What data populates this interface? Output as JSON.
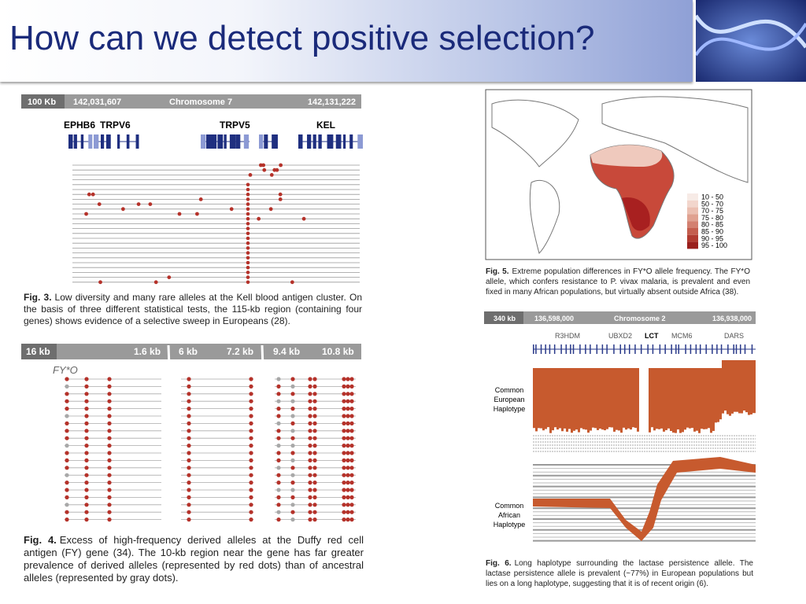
{
  "title": "How can we detect positive selection?",
  "fig3": {
    "scale": "100 Kb",
    "start": "142,031,607",
    "chromosome": "Chromosome 7",
    "end": "142,131,222",
    "genes": [
      "EPHB6",
      "TRPV6",
      "TRPV5",
      "KEL"
    ],
    "caption_label": "Fig. 3.",
    "caption": "Low diversity and many rare alleles at the Kell blood antigen cluster. On the basis of three different statistical tests, the 115-kb region (containing four genes) shows evidence of a selective sweep in Europeans (28)."
  },
  "fig4": {
    "scale": "16 kb",
    "ticks": [
      "1.6 kb",
      "6 kb",
      "7.2 kb",
      "9.4 kb",
      "10.8 kb"
    ],
    "allele": "FY*O",
    "caption_label": "Fig. 4.",
    "caption": "Excess of high-frequency derived alleles at the Duffy red cell antigen (FY) gene (34). The 10-kb region near the gene has far greater prevalence of derived alleles (represented by red dots) than of ancestral alleles (represented by gray dots)."
  },
  "fig5": {
    "legend": [
      "10 - 50",
      "50 - 70",
      "70 - 75",
      "75 - 80",
      "80 - 85",
      "85 - 90",
      "90 - 95",
      "95 - 100"
    ],
    "caption_label": "Fig. 5.",
    "caption": "Extreme population differences in FY*O allele frequency. The FY*O allele, which confers resistance to P. vivax malaria, is prevalent and even fixed in many African populations, but virtually absent outside Africa (38)."
  },
  "fig6": {
    "scale": "340 kb",
    "start": "136,598,000",
    "chromosome": "Chromosome 2",
    "end": "136,938,000",
    "genes": [
      "R3HDM",
      "UBXD2",
      "LCT",
      "MCM6",
      "DARS"
    ],
    "european": "Common European Haplotype",
    "african": "Common African Haplotype",
    "caption_label": "Fig. 6.",
    "caption": "Long haplotype surrounding the lactase persistence allele. The lactase persistence allele is prevalent (~77%) in European populations but lies on a long haplotype, suggesting that it is of recent origin (6)."
  }
}
